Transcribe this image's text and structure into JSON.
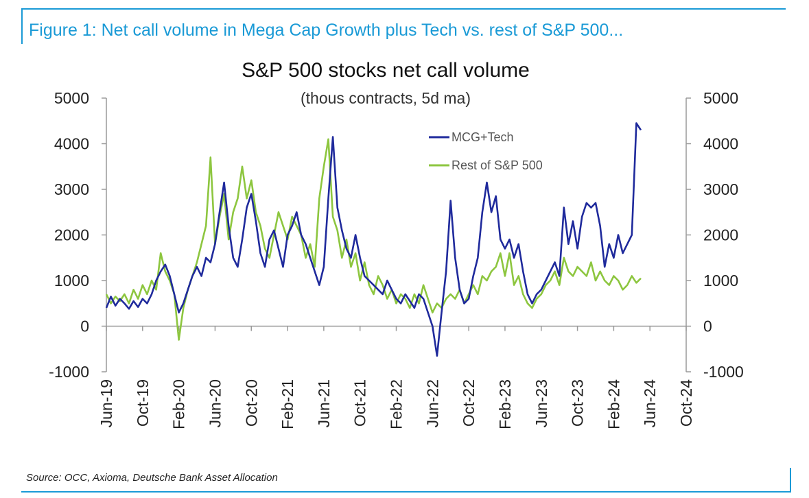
{
  "figure_caption": "Figure 1: Net call volume in Mega Cap Growth plus Tech vs. rest of S&P 500...",
  "source_note": "Source: OCC, Axioma, Deutsche Bank Asset Allocation",
  "colors": {
    "accent": "#1a9ad6",
    "mcg_tech": "#1f2a9c",
    "rest": "#8dc63f"
  },
  "chart_data": {
    "type": "line",
    "title": "S&P 500 stocks net call volume",
    "subtitle": "(thous contracts, 5d ma)",
    "xlabel": "",
    "ylabel": "",
    "ylim": [
      -1000,
      5000
    ],
    "y_ticks": [
      "5000",
      "4000",
      "3000",
      "2000",
      "1000",
      "0",
      "-1000"
    ],
    "x_ticks": [
      "Jun-19",
      "Oct-19",
      "Feb-20",
      "Jun-20",
      "Oct-20",
      "Feb-21",
      "Jun-21",
      "Oct-21",
      "Feb-22",
      "Jun-22",
      "Oct-22",
      "Feb-23",
      "Jun-23",
      "Oct-23",
      "Feb-24",
      "Jun-24",
      "Oct-24"
    ],
    "grid": false,
    "legend_position": "top-center",
    "x_unit": "months since Jun-19",
    "series": [
      {
        "name": "MCG+Tech",
        "color": "#1f2a9c",
        "points": [
          [
            0,
            400
          ],
          [
            0.5,
            650
          ],
          [
            1,
            450
          ],
          [
            1.5,
            600
          ],
          [
            2,
            500
          ],
          [
            2.5,
            380
          ],
          [
            3,
            550
          ],
          [
            3.5,
            420
          ],
          [
            4,
            600
          ],
          [
            4.5,
            500
          ],
          [
            5,
            700
          ],
          [
            5.5,
            1000
          ],
          [
            6,
            1200
          ],
          [
            6.5,
            1350
          ],
          [
            7,
            1100
          ],
          [
            7.5,
            700
          ],
          [
            8,
            300
          ],
          [
            8.5,
            500
          ],
          [
            9,
            800
          ],
          [
            9.5,
            1100
          ],
          [
            10,
            1300
          ],
          [
            10.5,
            1100
          ],
          [
            11,
            1500
          ],
          [
            11.5,
            1400
          ],
          [
            12,
            1800
          ],
          [
            12.5,
            2500
          ],
          [
            13,
            3150
          ],
          [
            13.5,
            2200
          ],
          [
            14,
            1500
          ],
          [
            14.5,
            1300
          ],
          [
            15,
            1900
          ],
          [
            15.5,
            2600
          ],
          [
            16,
            2900
          ],
          [
            16.5,
            2300
          ],
          [
            17,
            1600
          ],
          [
            17.5,
            1300
          ],
          [
            18,
            1900
          ],
          [
            18.5,
            2100
          ],
          [
            19,
            1700
          ],
          [
            19.5,
            1300
          ],
          [
            20,
            2000
          ],
          [
            20.5,
            2200
          ],
          [
            21,
            2500
          ],
          [
            21.5,
            2000
          ],
          [
            22,
            1800
          ],
          [
            22.5,
            1500
          ],
          [
            23,
            1200
          ],
          [
            23.5,
            900
          ],
          [
            24,
            1300
          ],
          [
            24.5,
            2800
          ],
          [
            25,
            4150
          ],
          [
            25.5,
            2600
          ],
          [
            26,
            2100
          ],
          [
            26.5,
            1700
          ],
          [
            27,
            1500
          ],
          [
            27.5,
            2000
          ],
          [
            28,
            1500
          ],
          [
            28.5,
            1100
          ],
          [
            29,
            1000
          ],
          [
            29.5,
            900
          ],
          [
            30,
            800
          ],
          [
            30.5,
            700
          ],
          [
            31,
            1000
          ],
          [
            31.5,
            800
          ],
          [
            32,
            600
          ],
          [
            32.5,
            500
          ],
          [
            33,
            700
          ],
          [
            33.5,
            550
          ],
          [
            34,
            400
          ],
          [
            34.5,
            700
          ],
          [
            35,
            600
          ],
          [
            35.5,
            300
          ],
          [
            36,
            0
          ],
          [
            36.5,
            -650
          ],
          [
            37,
            300
          ],
          [
            37.5,
            1200
          ],
          [
            38,
            2750
          ],
          [
            38.5,
            1500
          ],
          [
            39,
            800
          ],
          [
            39.5,
            500
          ],
          [
            40,
            600
          ],
          [
            40.5,
            1100
          ],
          [
            41,
            1500
          ],
          [
            41.5,
            2500
          ],
          [
            42,
            3150
          ],
          [
            42.5,
            2500
          ],
          [
            43,
            2850
          ],
          [
            43.5,
            1900
          ],
          [
            44,
            1700
          ],
          [
            44.5,
            1900
          ],
          [
            45,
            1500
          ],
          [
            45.5,
            1800
          ],
          [
            46,
            1200
          ],
          [
            46.5,
            700
          ],
          [
            47,
            500
          ],
          [
            47.5,
            700
          ],
          [
            48,
            800
          ],
          [
            48.5,
            1000
          ],
          [
            49,
            1200
          ],
          [
            49.5,
            1400
          ],
          [
            50,
            1100
          ],
          [
            50.5,
            2600
          ],
          [
            51,
            1800
          ],
          [
            51.5,
            2300
          ],
          [
            52,
            1700
          ],
          [
            52.5,
            2400
          ],
          [
            53,
            2700
          ],
          [
            53.5,
            2600
          ],
          [
            54,
            2700
          ],
          [
            54.5,
            2200
          ],
          [
            55,
            1300
          ],
          [
            55.5,
            1800
          ],
          [
            56,
            1500
          ],
          [
            56.5,
            2000
          ],
          [
            57,
            1600
          ],
          [
            57.5,
            1800
          ],
          [
            58,
            2000
          ],
          [
            58.5,
            4450
          ],
          [
            59,
            4300
          ]
        ]
      },
      {
        "name": "Rest of S&P 500",
        "color": "#8dc63f",
        "points": [
          [
            0,
            700
          ],
          [
            0.5,
            500
          ],
          [
            1,
            650
          ],
          [
            1.5,
            550
          ],
          [
            2,
            700
          ],
          [
            2.5,
            500
          ],
          [
            3,
            800
          ],
          [
            3.5,
            600
          ],
          [
            4,
            900
          ],
          [
            4.5,
            700
          ],
          [
            5,
            1000
          ],
          [
            5.5,
            800
          ],
          [
            6,
            1600
          ],
          [
            6.5,
            1200
          ],
          [
            7,
            1000
          ],
          [
            7.5,
            700
          ],
          [
            8,
            -300
          ],
          [
            8.5,
            400
          ],
          [
            9,
            800
          ],
          [
            9.5,
            1100
          ],
          [
            10,
            1400
          ],
          [
            10.5,
            1800
          ],
          [
            11,
            2200
          ],
          [
            11.5,
            3700
          ],
          [
            12,
            1800
          ],
          [
            12.5,
            2400
          ],
          [
            13,
            2900
          ],
          [
            13.5,
            1900
          ],
          [
            14,
            2500
          ],
          [
            14.5,
            2800
          ],
          [
            15,
            3500
          ],
          [
            15.5,
            2800
          ],
          [
            16,
            3200
          ],
          [
            16.5,
            2500
          ],
          [
            17,
            2200
          ],
          [
            17.5,
            1700
          ],
          [
            18,
            1500
          ],
          [
            18.5,
            2000
          ],
          [
            19,
            2500
          ],
          [
            19.5,
            2200
          ],
          [
            20,
            1900
          ],
          [
            20.5,
            2400
          ],
          [
            21,
            2200
          ],
          [
            21.5,
            2000
          ],
          [
            22,
            1500
          ],
          [
            22.5,
            1800
          ],
          [
            23,
            1300
          ],
          [
            23.5,
            2800
          ],
          [
            24,
            3500
          ],
          [
            24.5,
            4100
          ],
          [
            25,
            2400
          ],
          [
            25.5,
            2100
          ],
          [
            26,
            1500
          ],
          [
            26.5,
            1900
          ],
          [
            27,
            1300
          ],
          [
            27.5,
            1600
          ],
          [
            28,
            1000
          ],
          [
            28.5,
            1400
          ],
          [
            29,
            900
          ],
          [
            29.5,
            700
          ],
          [
            30,
            1100
          ],
          [
            30.5,
            900
          ],
          [
            31,
            600
          ],
          [
            31.5,
            800
          ],
          [
            32,
            500
          ],
          [
            32.5,
            700
          ],
          [
            33,
            600
          ],
          [
            33.5,
            400
          ],
          [
            34,
            700
          ],
          [
            34.5,
            500
          ],
          [
            35,
            900
          ],
          [
            35.5,
            600
          ],
          [
            36,
            300
          ],
          [
            36.5,
            500
          ],
          [
            37,
            400
          ],
          [
            37.5,
            600
          ],
          [
            38,
            700
          ],
          [
            38.5,
            600
          ],
          [
            39,
            800
          ],
          [
            39.5,
            500
          ],
          [
            40,
            700
          ],
          [
            40.5,
            900
          ],
          [
            41,
            700
          ],
          [
            41.5,
            1100
          ],
          [
            42,
            1000
          ],
          [
            42.5,
            1200
          ],
          [
            43,
            1300
          ],
          [
            43.5,
            1600
          ],
          [
            44,
            1100
          ],
          [
            44.5,
            1600
          ],
          [
            45,
            900
          ],
          [
            45.5,
            1100
          ],
          [
            46,
            700
          ],
          [
            46.5,
            500
          ],
          [
            47,
            400
          ],
          [
            47.5,
            600
          ],
          [
            48,
            700
          ],
          [
            48.5,
            900
          ],
          [
            49,
            1000
          ],
          [
            49.5,
            1200
          ],
          [
            50,
            900
          ],
          [
            50.5,
            1500
          ],
          [
            51,
            1200
          ],
          [
            51.5,
            1100
          ],
          [
            52,
            1300
          ],
          [
            52.5,
            1200
          ],
          [
            53,
            1100
          ],
          [
            53.5,
            1400
          ],
          [
            54,
            1000
          ],
          [
            54.5,
            1200
          ],
          [
            55,
            1000
          ],
          [
            55.5,
            900
          ],
          [
            56,
            1100
          ],
          [
            56.5,
            1000
          ],
          [
            57,
            800
          ],
          [
            57.5,
            900
          ],
          [
            58,
            1100
          ],
          [
            58.5,
            950
          ],
          [
            59,
            1050
          ]
        ]
      }
    ]
  }
}
